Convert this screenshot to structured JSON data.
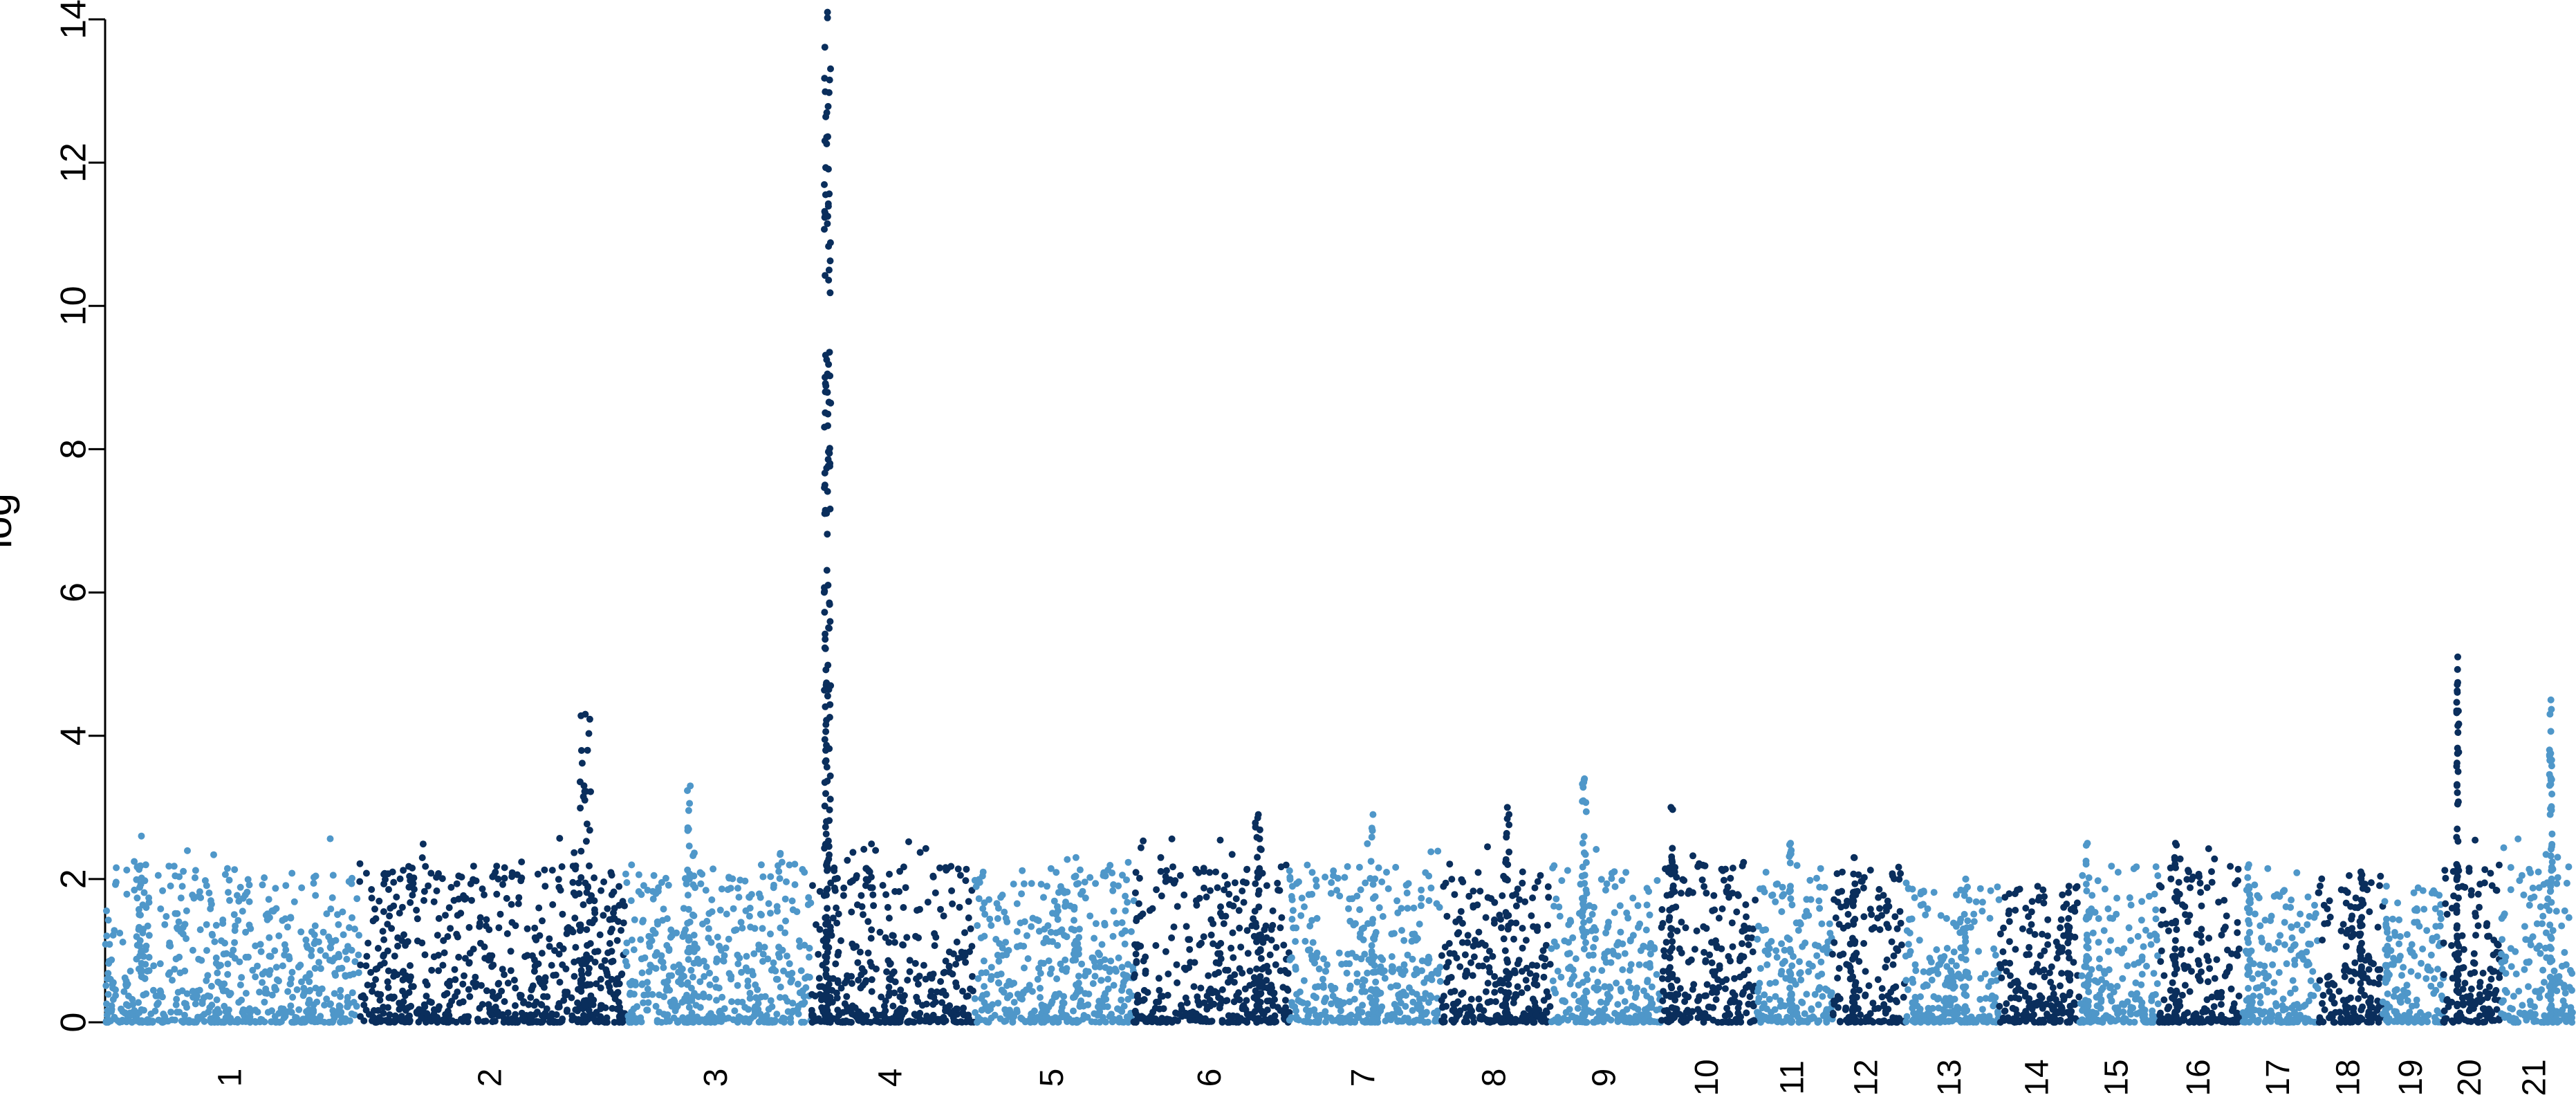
{
  "chart_data": {
    "type": "scatter",
    "ylabel": "log",
    "ylim": [
      0,
      14
    ],
    "yticks": [
      0,
      2,
      4,
      6,
      8,
      10,
      12,
      14
    ],
    "ytick_labels": [
      "0",
      "2",
      "4",
      "6",
      "8",
      "10",
      "12",
      "14"
    ],
    "xlabel": "",
    "grid": false,
    "colors": {
      "light": "#4f97c9",
      "dark": "#0a2e5c"
    },
    "chromosomes": [
      {
        "label": "1",
        "range": [
          0.0,
          0.67
        ],
        "color": "light",
        "peak": 2.6
      },
      {
        "label": "2",
        "range": [
          0.67,
          1.37
        ],
        "color": "dark",
        "peak": 4.3,
        "peak_at": 0.85
      },
      {
        "label": "3",
        "range": [
          1.37,
          1.86
        ],
        "color": "light",
        "peak": 3.3,
        "peak_at": 0.35
      },
      {
        "label": "4",
        "range": [
          1.86,
          2.29
        ],
        "color": "dark",
        "peak": 14.1,
        "peak_at": 0.1
      },
      {
        "label": "5",
        "range": [
          2.29,
          2.71
        ],
        "color": "light",
        "peak": 2.3
      },
      {
        "label": "6",
        "range": [
          2.71,
          3.12
        ],
        "color": "dark",
        "peak": 2.9,
        "peak_at": 0.8
      },
      {
        "label": "7",
        "range": [
          3.12,
          3.52
        ],
        "color": "light",
        "peak": 2.9,
        "peak_at": 0.55
      },
      {
        "label": "8",
        "range": [
          3.52,
          3.81
        ],
        "color": "dark",
        "peak": 3.0,
        "peak_at": 0.6
      },
      {
        "label": "9",
        "range": [
          3.81,
          4.1
        ],
        "color": "light",
        "peak": 3.4,
        "peak_at": 0.3
      },
      {
        "label": "10",
        "range": [
          4.1,
          4.35
        ],
        "color": "dark",
        "peak": 3.0,
        "peak_at": 0.1
      },
      {
        "label": "11",
        "range": [
          4.35,
          4.55
        ],
        "color": "light",
        "peak": 2.5,
        "peak_at": 0.45
      },
      {
        "label": "12",
        "range": [
          4.55,
          4.74
        ],
        "color": "dark",
        "peak": 2.3,
        "peak_at": 0.3
      },
      {
        "label": "13",
        "range": [
          4.74,
          4.99
        ],
        "color": "light",
        "peak": 2.0
      },
      {
        "label": "14",
        "range": [
          4.99,
          5.2
        ],
        "color": "dark",
        "peak": 1.9
      },
      {
        "label": "15",
        "range": [
          5.2,
          5.41
        ],
        "color": "light",
        "peak": 2.5
      },
      {
        "label": "16",
        "range": [
          5.41,
          5.63
        ],
        "color": "dark",
        "peak": 2.5,
        "peak_at": 0.2
      },
      {
        "label": "17",
        "range": [
          5.63,
          5.83
        ],
        "color": "light",
        "peak": 2.2
      },
      {
        "label": "18",
        "range": [
          5.83,
          6.0
        ],
        "color": "dark",
        "peak": 2.1
      },
      {
        "label": "19",
        "range": [
          6.0,
          6.16
        ],
        "color": "light",
        "peak": 1.9
      },
      {
        "label": "20",
        "range": [
          6.16,
          6.31
        ],
        "color": "dark",
        "peak": 5.1,
        "peak_at": 0.25
      },
      {
        "label": "21",
        "range": [
          6.31,
          6.5
        ],
        "color": "light",
        "peak": 4.5,
        "peak_at": 0.7
      }
    ]
  }
}
